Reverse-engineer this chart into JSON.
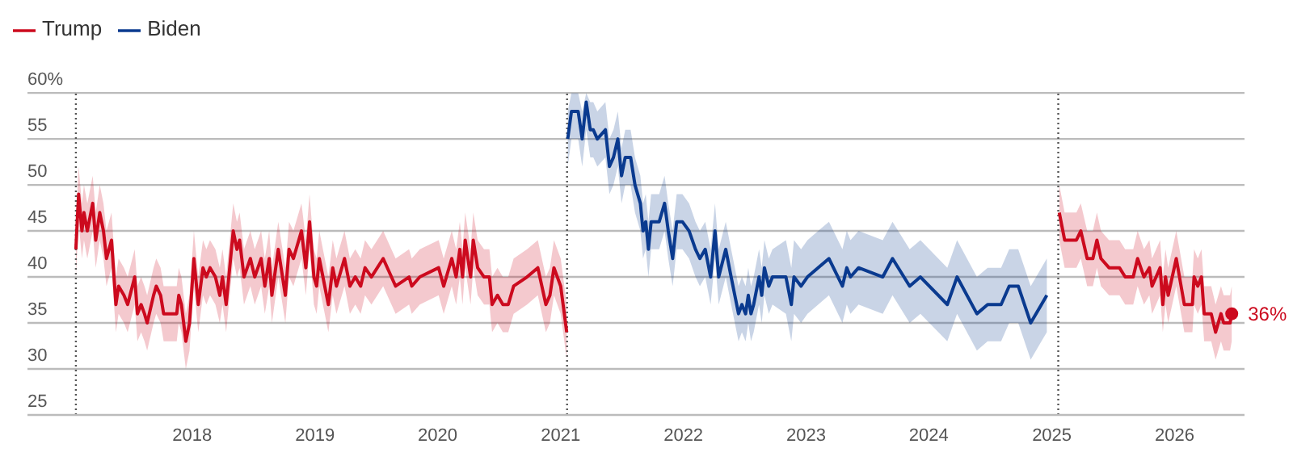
{
  "chart_data": {
    "type": "line",
    "ylim": [
      25,
      60
    ],
    "yticks": [
      25,
      30,
      35,
      40,
      45,
      50,
      55,
      {
        "value": 60,
        "label": "60%"
      }
    ],
    "xlim": [
      "2016-08-29",
      "2026-07-28"
    ],
    "xticks": [
      {
        "value": "2018-01-01",
        "label": "2018"
      },
      {
        "value": "2019-01-01",
        "label": "2019"
      },
      {
        "value": "2020-01-01",
        "label": "2020"
      },
      {
        "value": "2021-01-01",
        "label": "2021"
      },
      {
        "value": "2022-01-01",
        "label": "2022"
      },
      {
        "value": "2023-01-01",
        "label": "2023"
      },
      {
        "value": "2024-01-01",
        "label": "2024"
      },
      {
        "value": "2025-01-01",
        "label": "2025"
      },
      {
        "value": "2026-01-01",
        "label": "2026"
      }
    ],
    "grid": "y",
    "legend": "top left",
    "marker": "none",
    "series": [
      {
        "name": "Trump",
        "color": "#cc0a1e",
        "x": [
          "2017-01-20",
          "2017-01-28",
          "2017-02-07",
          "2017-02-13",
          "2017-02-23",
          "2017-03-11",
          "2017-03-20",
          "2017-04-01",
          "2017-04-12",
          "2017-04-21",
          "2017-05-06",
          "2017-05-19",
          "2017-05-27",
          "2017-06-12",
          "2017-06-23",
          "2017-07-14",
          "2017-07-22",
          "2017-08-02",
          "2017-08-12",
          "2017-08-20",
          "2017-09-08",
          "2017-09-16",
          "2017-09-29",
          "2017-10-08",
          "2017-11-16",
          "2017-11-22",
          "2017-11-30",
          "2017-12-13",
          "2017-12-24",
          "2018-01-06",
          "2018-01-19",
          "2018-02-02",
          "2018-02-12",
          "2018-02-23",
          "2018-03-11",
          "2018-03-24",
          "2018-04-01",
          "2018-04-12",
          "2018-05-03",
          "2018-05-14",
          "2018-05-22",
          "2018-06-04",
          "2018-06-23",
          "2018-07-06",
          "2018-07-25",
          "2018-08-05",
          "2018-08-18",
          "2018-08-26",
          "2018-09-14",
          "2018-10-05",
          "2018-10-16",
          "2018-10-29",
          "2018-11-22",
          "2018-12-05",
          "2018-12-16",
          "2018-12-29",
          "2019-01-06",
          "2019-01-14",
          "2019-02-10",
          "2019-02-23",
          "2019-03-06",
          "2019-03-30",
          "2019-04-15",
          "2019-05-01",
          "2019-05-17",
          "2019-05-30",
          "2019-06-18",
          "2019-07-23",
          "2019-08-29",
          "2019-10-08",
          "2019-10-16",
          "2019-11-09",
          "2020-01-04",
          "2020-01-19",
          "2020-02-12",
          "2020-02-25",
          "2020-03-07",
          "2020-03-15",
          "2020-03-23",
          "2020-04-08",
          "2020-04-16",
          "2020-04-29",
          "2020-05-18",
          "2020-06-03",
          "2020-06-11",
          "2020-06-27",
          "2020-07-13",
          "2020-07-29",
          "2020-08-14",
          "2020-09-23",
          "2020-10-25",
          "2020-11-18",
          "2020-11-30",
          "2020-12-12",
          "2021-01-01",
          "2021-01-19",
          "2023-01-01",
          "2025-01-23",
          "2025-02-08",
          "2025-03-15",
          "2025-03-28",
          "2025-04-16",
          "2025-05-03",
          "2025-05-15",
          "2025-05-27",
          "2025-06-20",
          "2025-07-21",
          "2025-08-07",
          "2025-08-31",
          "2025-09-13",
          "2025-10-02",
          "2025-10-18",
          "2025-10-26",
          "2025-11-19",
          "2025-11-27",
          "2025-12-05",
          "2025-12-13",
          "2026-01-06",
          "2026-01-30",
          "2026-02-23",
          "2026-02-28",
          "2026-03-11",
          "2026-03-22",
          "2026-03-30",
          "2026-04-20",
          "2026-05-03",
          "2026-05-19",
          "2026-05-27",
          "2026-06-15",
          "2026-06-20"
        ],
        "values": [
          43,
          49,
          45,
          47,
          45,
          48,
          44,
          47,
          45,
          42,
          44,
          37,
          39,
          38,
          37,
          40,
          36,
          37,
          36,
          35,
          38,
          39,
          38,
          36,
          36,
          38,
          37,
          33,
          35,
          42,
          37,
          41,
          40,
          41,
          40,
          38,
          40,
          37,
          45,
          43,
          44,
          40,
          42,
          40,
          42,
          39,
          42,
          38,
          43,
          38,
          43,
          42,
          45,
          41,
          46,
          40,
          39,
          42,
          37,
          41,
          39,
          42,
          39,
          40,
          39,
          41,
          40,
          42,
          39,
          40,
          39,
          40,
          41,
          39,
          42,
          40,
          43,
          40,
          44,
          40,
          44,
          41,
          40,
          40,
          37,
          38,
          37,
          37,
          39,
          40,
          41,
          37,
          38,
          41,
          39,
          34,
          null,
          47,
          44,
          44,
          45,
          42,
          42,
          44,
          42,
          41,
          41,
          40,
          40,
          42,
          40,
          41,
          39,
          41,
          37,
          40,
          38,
          42,
          37,
          37,
          40,
          39,
          40,
          36,
          36,
          34,
          36,
          35,
          35,
          36
        ],
        "lower": [
          40,
          46,
          42,
          44,
          42,
          45,
          41,
          44,
          42,
          39,
          41,
          34,
          36,
          35,
          34,
          37,
          33,
          34,
          33,
          32,
          35,
          36,
          35,
          33,
          33,
          35,
          34,
          30,
          32,
          39,
          34,
          38,
          37,
          38,
          37,
          35,
          37,
          34,
          42,
          40,
          41,
          37,
          39,
          37,
          39,
          36,
          39,
          35,
          40,
          35,
          40,
          39,
          42,
          38,
          43,
          37,
          36,
          39,
          34,
          38,
          36,
          39,
          36,
          37,
          36,
          38,
          37,
          39,
          36,
          37,
          36,
          37,
          38,
          36,
          39,
          37,
          40,
          37,
          41,
          37,
          41,
          38,
          37,
          37,
          34,
          35,
          34,
          34,
          36,
          37,
          38,
          34,
          35,
          38,
          36,
          31,
          null,
          44,
          41,
          41,
          42,
          39,
          39,
          41,
          39,
          38,
          38,
          37,
          37,
          39,
          37,
          38,
          36,
          38,
          34,
          37,
          35,
          39,
          34,
          34,
          37,
          36,
          37,
          33,
          33,
          31,
          33,
          32,
          32,
          33
        ],
        "upper": [
          46,
          52,
          48,
          50,
          48,
          51,
          47,
          50,
          48,
          45,
          47,
          40,
          42,
          41,
          40,
          43,
          39,
          40,
          39,
          38,
          41,
          42,
          41,
          39,
          39,
          41,
          40,
          36,
          38,
          45,
          40,
          44,
          43,
          44,
          43,
          41,
          43,
          40,
          48,
          46,
          47,
          43,
          45,
          43,
          45,
          42,
          45,
          41,
          46,
          41,
          46,
          45,
          48,
          44,
          49,
          43,
          42,
          45,
          40,
          44,
          42,
          45,
          42,
          43,
          42,
          44,
          43,
          45,
          42,
          43,
          42,
          43,
          44,
          42,
          45,
          43,
          46,
          43,
          47,
          43,
          47,
          44,
          43,
          43,
          40,
          41,
          40,
          40,
          42,
          43,
          44,
          40,
          41,
          44,
          42,
          37,
          null,
          50,
          47,
          47,
          48,
          45,
          45,
          47,
          45,
          44,
          44,
          43,
          43,
          45,
          43,
          44,
          42,
          44,
          40,
          43,
          41,
          45,
          40,
          40,
          43,
          42,
          43,
          39,
          39,
          37,
          39,
          38,
          38,
          39
        ]
      },
      {
        "name": "Biden",
        "color": "#0a3a8f",
        "x": [
          "2021-01-22",
          "2021-02-02",
          "2021-02-22",
          "2021-03-06",
          "2021-03-18",
          "2021-03-30",
          "2021-04-08",
          "2021-04-20",
          "2021-05-14",
          "2021-05-26",
          "2021-06-07",
          "2021-06-20",
          "2021-07-01",
          "2021-07-12",
          "2021-07-28",
          "2021-08-10",
          "2021-08-26",
          "2021-09-03",
          "2021-09-11",
          "2021-09-19",
          "2021-09-27",
          "2021-10-21",
          "2021-11-06",
          "2021-11-17",
          "2021-11-30",
          "2021-12-12",
          "2021-12-29",
          "2022-01-18",
          "2022-02-06",
          "2022-02-19",
          "2022-03-07",
          "2022-03-23",
          "2022-04-05",
          "2022-04-16",
          "2022-05-07",
          "2022-05-23",
          "2022-06-03",
          "2022-06-14",
          "2022-06-24",
          "2022-07-05",
          "2022-07-13",
          "2022-07-21",
          "2022-07-29",
          "2022-08-14",
          "2022-08-22",
          "2022-08-30",
          "2022-09-12",
          "2022-09-23",
          "2022-11-02",
          "2022-11-18",
          "2022-11-26",
          "2022-12-17",
          "2023-01-05",
          "2023-03-10",
          "2023-04-19",
          "2023-05-02",
          "2023-05-13",
          "2023-06-06",
          "2023-08-17",
          "2023-09-15",
          "2023-11-05",
          "2023-12-07",
          "2024-02-25",
          "2024-03-25",
          "2024-05-23",
          "2024-06-24",
          "2024-08-03",
          "2024-08-27",
          "2024-09-23",
          "2024-10-30",
          "2024-12-01",
          "2024-12-17"
        ],
        "values": [
          55,
          58,
          58,
          55,
          59,
          56,
          56,
          55,
          56,
          52,
          53,
          55,
          51,
          53,
          53,
          50,
          48,
          45,
          46,
          43,
          46,
          46,
          48,
          45,
          42,
          46,
          46,
          45,
          43,
          42,
          43,
          40,
          45,
          40,
          43,
          40,
          38,
          36,
          37,
          36,
          38,
          36,
          37,
          40,
          38,
          41,
          39,
          40,
          40,
          37,
          40,
          39,
          40,
          42,
          39,
          41,
          40,
          41,
          40,
          42,
          39,
          40,
          37,
          40,
          36,
          37,
          37,
          39,
          39,
          35,
          37,
          38
        ],
        "lower": [
          52,
          55,
          55,
          52,
          56,
          53,
          53,
          52,
          53,
          49,
          50,
          52,
          48,
          50,
          50,
          47,
          45,
          42,
          43,
          40,
          43,
          43,
          45,
          42,
          39,
          43,
          43,
          42,
          40,
          39,
          40,
          37,
          42,
          37,
          40,
          37,
          35,
          33,
          34,
          33,
          35,
          33,
          34,
          37,
          35,
          38,
          36,
          37,
          36,
          33,
          36,
          35,
          36,
          38,
          35,
          37,
          36,
          37,
          36,
          38,
          35,
          36,
          33,
          36,
          32,
          33,
          33,
          35,
          35,
          31,
          33,
          34
        ],
        "upper": [
          58,
          60,
          60,
          58,
          60,
          59,
          59,
          58,
          59,
          55,
          56,
          58,
          54,
          56,
          56,
          53,
          51,
          48,
          49,
          46,
          49,
          49,
          51,
          48,
          45,
          49,
          49,
          48,
          46,
          45,
          46,
          43,
          48,
          43,
          46,
          43,
          41,
          39,
          40,
          39,
          41,
          39,
          40,
          43,
          41,
          44,
          42,
          43,
          44,
          41,
          44,
          43,
          44,
          46,
          43,
          45,
          44,
          45,
          44,
          46,
          43,
          44,
          41,
          44,
          40,
          41,
          41,
          43,
          43,
          39,
          41,
          42
        ]
      }
    ],
    "ref_lines": [
      {
        "axis": "x",
        "value": "2017-01-20",
        "color": "#555555",
        "line_style": "dotted"
      },
      {
        "axis": "x",
        "value": "2021-01-20",
        "color": "#555555",
        "line_style": "dotted"
      },
      {
        "axis": "x",
        "value": "2025-01-20",
        "color": "#555555",
        "line_style": "dotted"
      }
    ],
    "annotations": [
      {
        "text": "36%",
        "x": "2026-06-20",
        "y": 36
      }
    ]
  }
}
